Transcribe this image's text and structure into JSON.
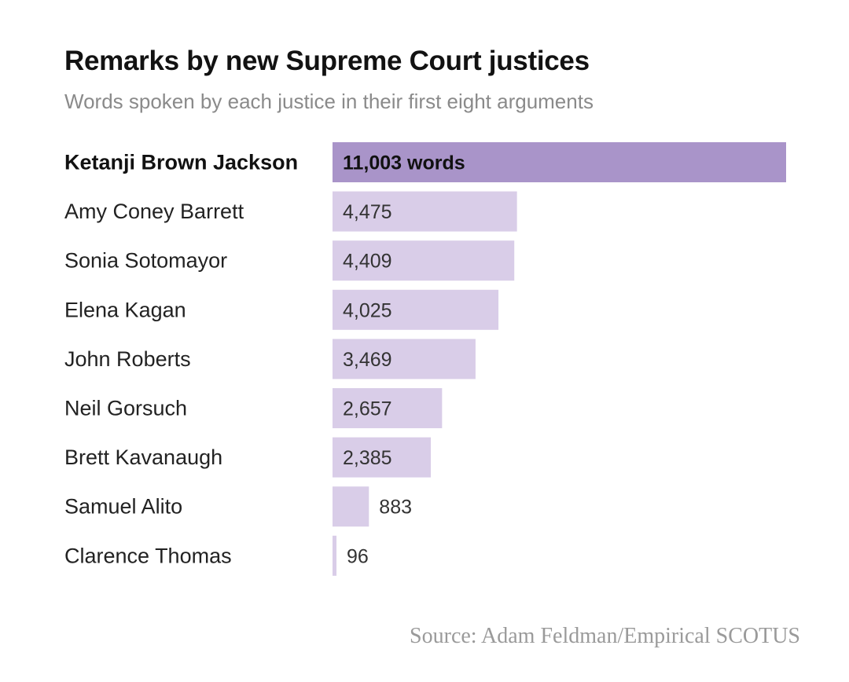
{
  "header": {
    "title": "Remarks by new Supreme Court justices",
    "subtitle": "Words spoken by each justice in their first eight arguments"
  },
  "source": "Source: Adam Feldman/Empirical SCOTUS",
  "colors": {
    "highlight_bar": "#a994c9",
    "bar": "#d9cde8"
  },
  "chart_data": {
    "type": "bar",
    "orientation": "horizontal",
    "title": "Remarks by new Supreme Court justices",
    "subtitle": "Words spoken by each justice in their first eight arguments",
    "categories": [
      "Ketanji Brown Jackson",
      "Amy Coney Barrett",
      "Sonia Sotomayor",
      "Elena Kagan",
      "John Roberts",
      "Neil Gorsuch",
      "Brett Kavanaugh",
      "Samuel Alito",
      "Clarence Thomas"
    ],
    "values": [
      11003,
      4475,
      4409,
      4025,
      3469,
      2657,
      2385,
      883,
      96
    ],
    "data_labels": [
      "11,003 words",
      "4,475",
      "4,409",
      "4,025",
      "3,469",
      "2,657",
      "2,385",
      "883",
      "96"
    ],
    "highlight_index": 0,
    "xlim": [
      0,
      11003
    ],
    "grid": false,
    "legend": "none"
  }
}
